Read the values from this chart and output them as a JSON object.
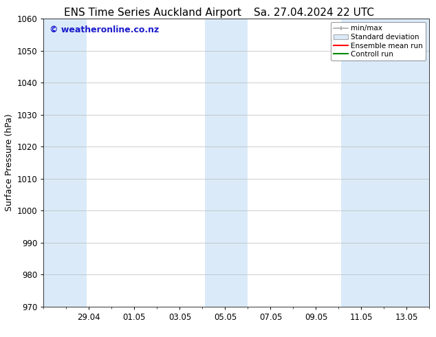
{
  "title_left": "ENS Time Series Auckland Airport",
  "title_right": "Sa. 27.04.2024 22 UTC",
  "ylabel": "Surface Pressure (hPa)",
  "ylim": [
    970,
    1060
  ],
  "yticks": [
    970,
    980,
    990,
    1000,
    1010,
    1020,
    1030,
    1040,
    1050,
    1060
  ],
  "xtick_labels": [
    "29.04",
    "01.05",
    "03.05",
    "05.05",
    "07.05",
    "09.05",
    "11.05",
    "13.05"
  ],
  "xtick_positions": [
    2,
    4,
    6,
    8,
    10,
    12,
    14,
    16
  ],
  "xlim": [
    0,
    17
  ],
  "background_color": "#ffffff",
  "plot_bg_color": "#ffffff",
  "shaded_bands": [
    {
      "x_start": 0.0,
      "x_end": 1.9,
      "color": "#daeaf8"
    },
    {
      "x_start": 7.1,
      "x_end": 9.0,
      "color": "#daeaf8"
    },
    {
      "x_start": 13.1,
      "x_end": 17.0,
      "color": "#daeaf8"
    }
  ],
  "watermark_text": "© weatheronline.co.nz",
  "watermark_color": "#1a1acc",
  "watermark_fontsize": 9,
  "legend_items": [
    {
      "label": "min/max",
      "color": "#aaaaaa",
      "style": "errorbar"
    },
    {
      "label": "Standard deviation",
      "color": "#ccddee",
      "style": "fill"
    },
    {
      "label": "Ensemble mean run",
      "color": "#ff0000",
      "style": "line"
    },
    {
      "label": "Controll run",
      "color": "#008800",
      "style": "line"
    }
  ],
  "title_fontsize": 11,
  "axis_label_fontsize": 9,
  "tick_fontsize": 8.5,
  "grid_color": "#bbbbbb",
  "spine_color": "#333333"
}
